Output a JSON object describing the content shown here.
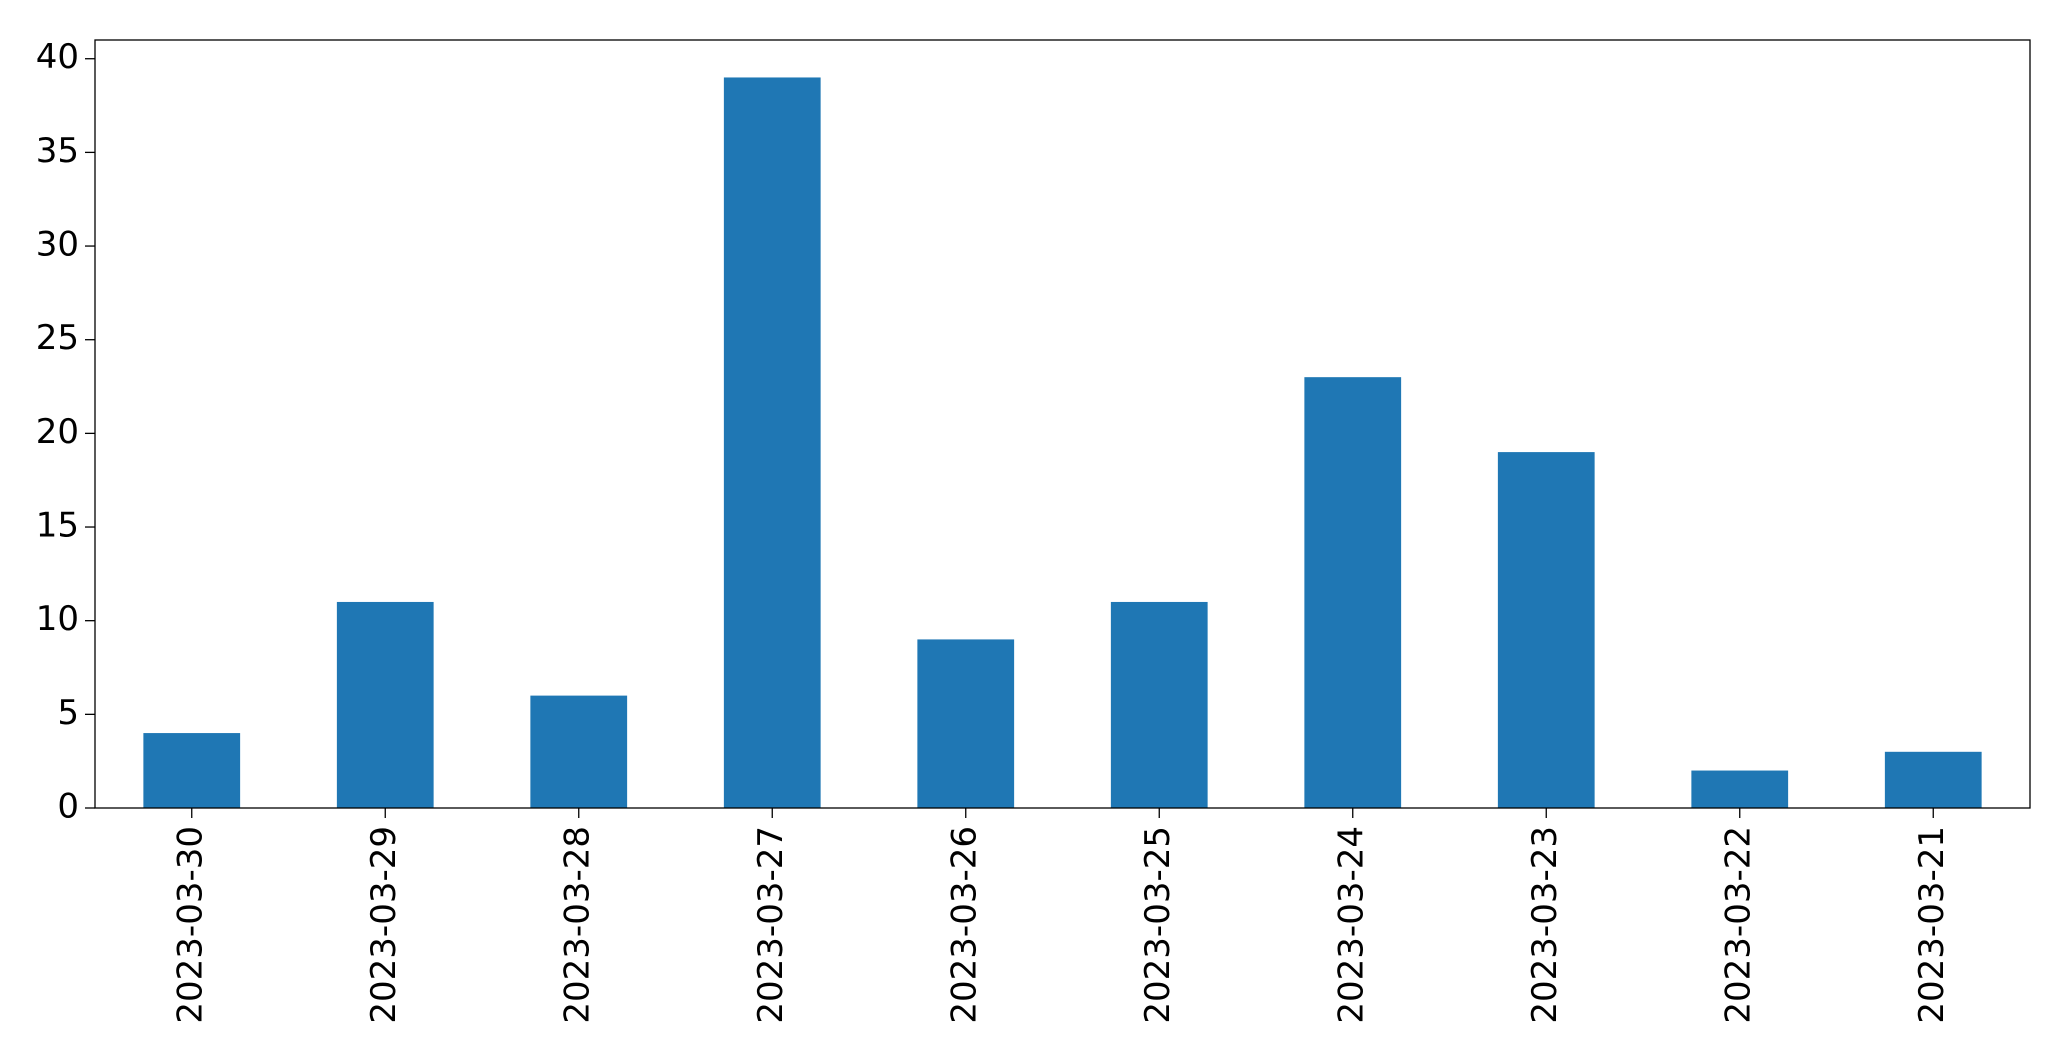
{
  "chart_data": {
    "type": "bar",
    "categories": [
      "2023-03-30",
      "2023-03-29",
      "2023-03-28",
      "2023-03-27",
      "2023-03-26",
      "2023-03-25",
      "2023-03-24",
      "2023-03-23",
      "2023-03-22",
      "2023-03-21"
    ],
    "values": [
      4,
      11,
      6,
      39,
      9,
      11,
      23,
      19,
      2,
      3
    ],
    "color": "#1f77b4",
    "ylim": [
      0,
      41
    ],
    "yticks": [
      0,
      5,
      10,
      15,
      20,
      25,
      30,
      35,
      40
    ],
    "grid": false
  }
}
